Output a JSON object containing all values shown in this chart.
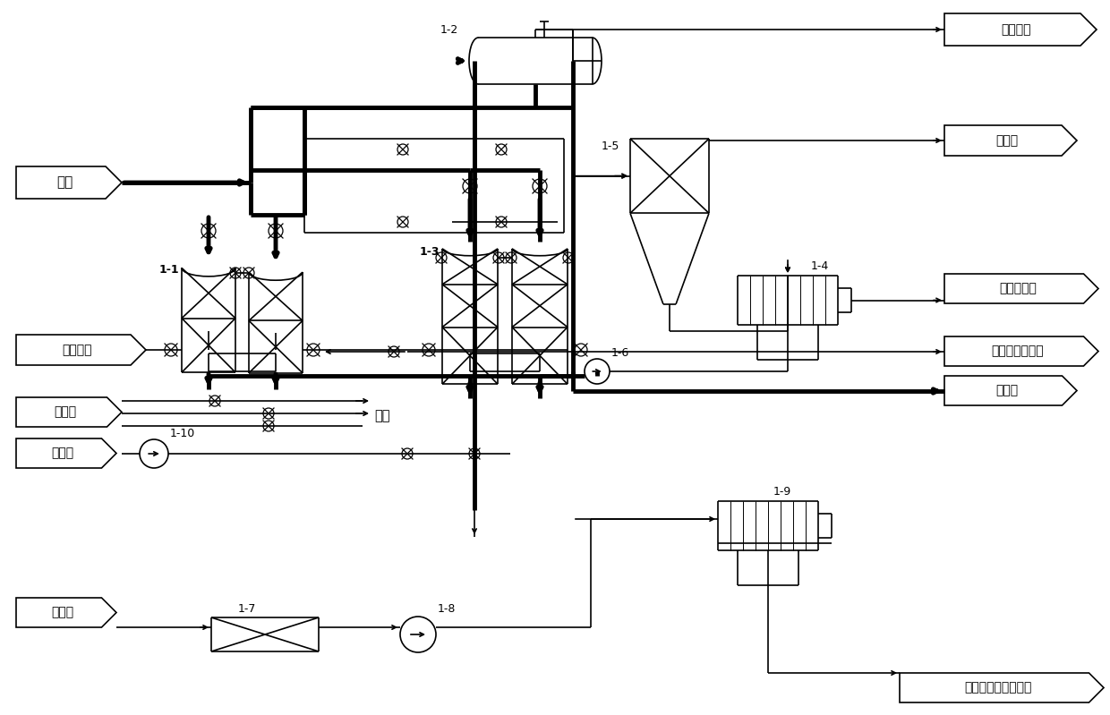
{
  "bg_color": "#ffffff",
  "lc": "#000000",
  "tlw": 3.5,
  "mlw": 1.8,
  "nlw": 1.2,
  "labels": {
    "waste_water": "废水",
    "compressed_gas": "压缩气体",
    "rinse_agent": "荷洗剂",
    "regenerant": "再生剂",
    "precipitant": "沉淠剂",
    "waste_oil": "废油回收",
    "to_furnace": "去火炉",
    "to_solid_waste": "去固废系统",
    "return_tank": "返回再生剂储罐",
    "purified_water": "净化水",
    "heavy_metal": "重金属滤饵回收利用",
    "reuse": "回用",
    "u11": "1-1",
    "u12": "1-2",
    "u13": "1-3",
    "u14": "1-4",
    "u15": "1-5",
    "u16": "1-6",
    "u17": "1-7",
    "u18": "1-8",
    "u19": "1-9",
    "u110": "1-10"
  }
}
